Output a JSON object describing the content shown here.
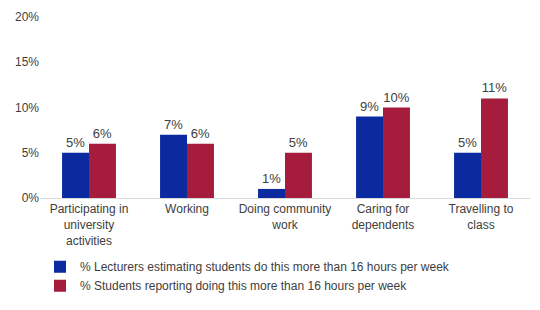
{
  "chart_data": {
    "type": "bar",
    "categories": [
      "Participating in university activities",
      "Working",
      "Doing community work",
      "Caring for dependents",
      "Travelling to class"
    ],
    "series": [
      {
        "name": "% Lecturers estimating students do this more than 16 hours per week",
        "color": "#0b2aa0",
        "values": [
          5,
          7,
          1,
          9,
          5
        ],
        "value_labels": [
          "5%",
          "7%",
          "1%",
          "9%",
          "5%"
        ]
      },
      {
        "name": "% Students reporting doing this more than 16 hours per week",
        "color": "#a61c3c",
        "values": [
          6,
          6,
          5,
          10,
          11
        ],
        "value_labels": [
          "6%",
          "6%",
          "5%",
          "10%",
          "11%"
        ]
      }
    ],
    "ylim": [
      0,
      20
    ],
    "yticks": [
      {
        "value": 0,
        "label": "0%"
      },
      {
        "value": 5,
        "label": "5%"
      },
      {
        "value": 10,
        "label": "10%"
      },
      {
        "value": 15,
        "label": "15%"
      },
      {
        "value": 20,
        "label": "20%"
      }
    ],
    "grid": false,
    "legend": "bottom",
    "data_labels": true
  }
}
